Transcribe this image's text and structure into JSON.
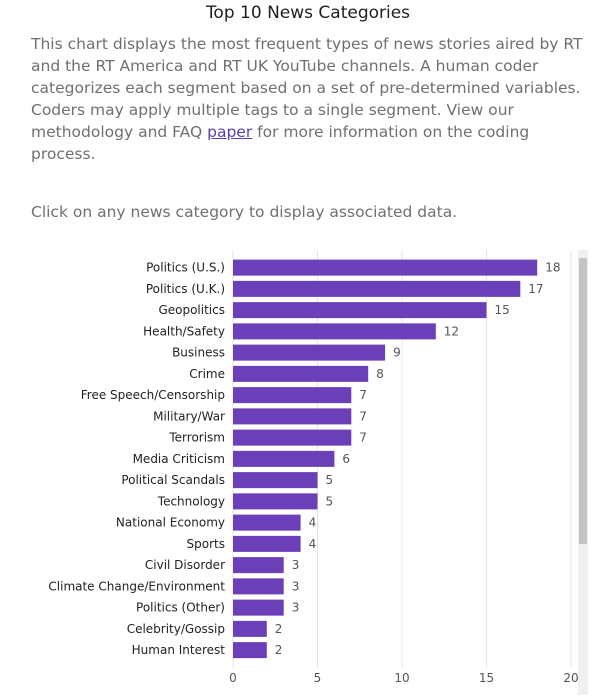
{
  "page": {
    "title": "Top 10 News Categories",
    "description_before_link": "This chart displays the most frequent types of news stories aired by RT and the RT America and RT UK YouTube channels. A human coder categorizes each segment based on a set of pre-determined variables. Coders may apply multiple tags to a single segment. View our methodology and FAQ ",
    "description_link": "paper",
    "description_after_link": " for more information on the coding process.",
    "hint": "Click on any news category to display associated data."
  },
  "chart_data": {
    "type": "bar",
    "orientation": "horizontal",
    "title": "Top 10 News Categories",
    "categories": [
      "Politics (U.S.)",
      "Politics (U.K.)",
      "Geopolitics",
      "Health/Safety",
      "Business",
      "Crime",
      "Free Speech/Censorship",
      "Military/War",
      "Terrorism",
      "Media Criticism",
      "Political Scandals",
      "Technology",
      "National Economy",
      "Sports",
      "Civil Disorder",
      "Climate Change/Environment",
      "Politics (Other)",
      "Celebrity/Gossip",
      "Human Interest"
    ],
    "values": [
      18,
      17,
      15,
      12,
      9,
      8,
      7,
      7,
      7,
      6,
      5,
      5,
      4,
      4,
      3,
      3,
      3,
      2,
      2
    ],
    "xlim": [
      0,
      20
    ],
    "xticks": [
      0,
      5,
      10,
      15,
      20
    ],
    "xlabel": "",
    "ylabel": "",
    "grid": true,
    "data_labels": true,
    "bar_color": "#6a3fb8"
  }
}
